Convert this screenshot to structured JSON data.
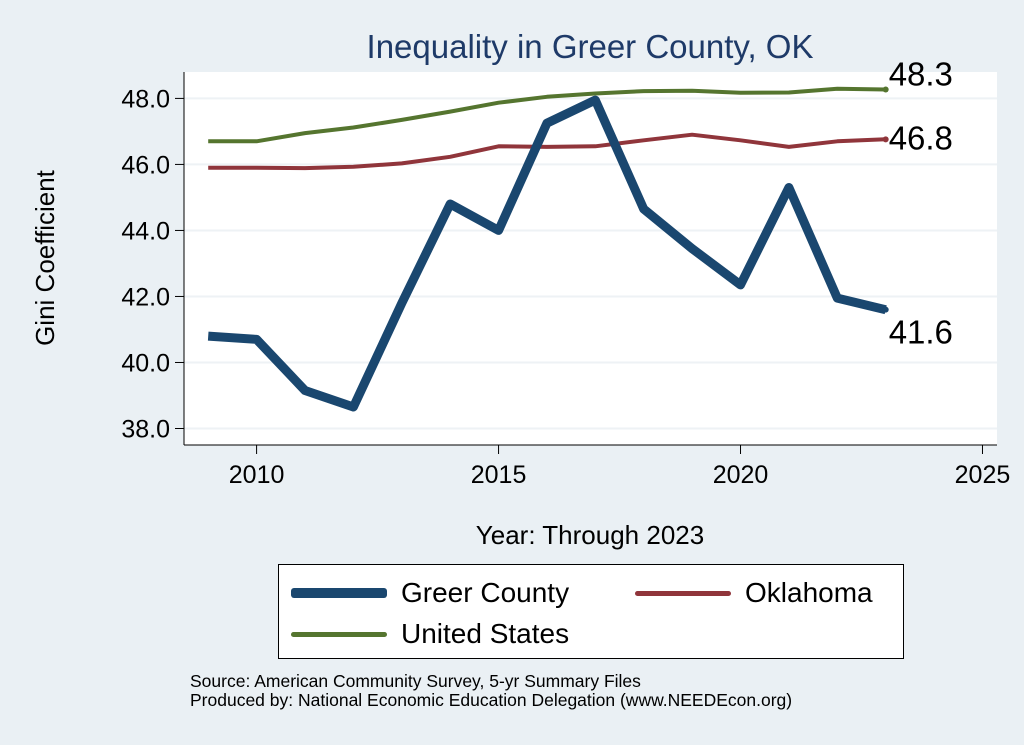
{
  "chart_data": {
    "type": "line",
    "title": "Inequality in Greer County, OK",
    "xlabel": "Year: Through 2023",
    "ylabel": "Gini Coefficient",
    "xlim": [
      2008.5,
      2025.3
    ],
    "ylim": [
      37.5,
      48.8
    ],
    "x_ticks": [
      2010,
      2015,
      2020,
      2025
    ],
    "y_ticks": [
      38.0,
      40.0,
      42.0,
      44.0,
      46.0,
      48.0
    ],
    "y_tick_labels": [
      "38.0",
      "40.0",
      "42.0",
      "44.0",
      "46.0",
      "48.0"
    ],
    "grid": true,
    "x": [
      2009,
      2010,
      2011,
      2012,
      2013,
      2014,
      2015,
      2016,
      2017,
      2018,
      2019,
      2020,
      2021,
      2022,
      2023
    ],
    "series": [
      {
        "name": "Greer County",
        "color": "#1a476f",
        "width": 9,
        "values": [
          40.8,
          40.7,
          39.15,
          38.65,
          41.8,
          44.8,
          44.0,
          47.25,
          47.95,
          44.65,
          43.45,
          42.35,
          45.3,
          41.95,
          41.6
        ],
        "end_label": "41.6"
      },
      {
        "name": "Oklahoma",
        "color": "#90353b",
        "width": 4,
        "values": [
          45.9,
          45.9,
          45.89,
          45.93,
          46.03,
          46.23,
          46.55,
          46.53,
          46.55,
          46.73,
          46.9,
          46.73,
          46.53,
          46.7,
          46.76
        ],
        "end_label": "46.8"
      },
      {
        "name": "United States",
        "color": "#55752f",
        "width": 4,
        "values": [
          46.7,
          46.7,
          46.95,
          47.12,
          47.35,
          47.6,
          47.87,
          48.05,
          48.15,
          48.22,
          48.23,
          48.17,
          48.18,
          48.29,
          48.27
        ],
        "end_label": "48.3"
      }
    ],
    "legend_position": "bottom"
  },
  "legend": {
    "items": [
      {
        "name": "Greer County",
        "color": "#1a476f"
      },
      {
        "name": "Oklahoma",
        "color": "#90353b"
      },
      {
        "name": "United States",
        "color": "#55752f"
      }
    ]
  },
  "footer": {
    "source": "Source: American Community Survey, 5-yr Summary Files",
    "produced": "Produced by: National Economic Education Delegation (www.NEEDEcon.org)"
  }
}
